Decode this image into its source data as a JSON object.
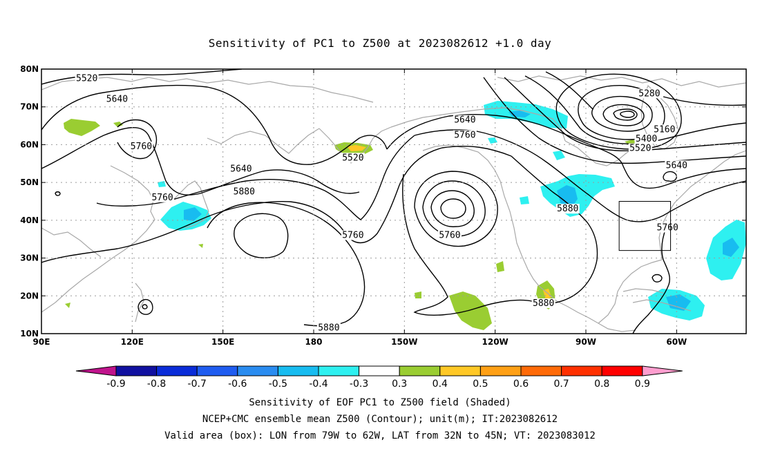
{
  "title": "Sensitivity of PC1 to Z500 at 2023082612 +1.0 day",
  "axes": {
    "lon_ticks": [
      {
        "lon": 90,
        "label": "90E"
      },
      {
        "lon": 120,
        "label": "120E"
      },
      {
        "lon": 150,
        "label": "150E"
      },
      {
        "lon": 180,
        "label": "180"
      },
      {
        "lon": 210,
        "label": "150W"
      },
      {
        "lon": 240,
        "label": "120W"
      },
      {
        "lon": 270,
        "label": "90W"
      },
      {
        "lon": 300,
        "label": "60W"
      }
    ],
    "lat_ticks": [
      {
        "lat": 80,
        "label": "80N"
      },
      {
        "lat": 70,
        "label": "70N"
      },
      {
        "lat": 60,
        "label": "60N"
      },
      {
        "lat": 50,
        "label": "50N"
      },
      {
        "lat": 40,
        "label": "40N"
      },
      {
        "lat": 30,
        "label": "30N"
      },
      {
        "lat": 20,
        "label": "20N"
      },
      {
        "lat": 10,
        "label": "10N"
      }
    ],
    "lon_range": [
      90,
      323
    ],
    "lat_range": [
      10,
      80
    ]
  },
  "contour_labels": [
    {
      "text": "5520",
      "lon": 105,
      "lat": 77
    },
    {
      "text": "5640",
      "lon": 115,
      "lat": 71.5
    },
    {
      "text": "5760",
      "lon": 123,
      "lat": 59
    },
    {
      "text": "5640",
      "lon": 156,
      "lat": 53
    },
    {
      "text": "5760",
      "lon": 130,
      "lat": 45.5
    },
    {
      "text": "5880",
      "lon": 157,
      "lat": 47
    },
    {
      "text": "5520",
      "lon": 193,
      "lat": 56
    },
    {
      "text": "5760",
      "lon": 193,
      "lat": 35.5
    },
    {
      "text": "5640",
      "lon": 230,
      "lat": 66
    },
    {
      "text": "5760",
      "lon": 230,
      "lat": 62
    },
    {
      "text": "5760",
      "lon": 225,
      "lat": 35.5
    },
    {
      "text": "5880",
      "lon": 264,
      "lat": 42.5
    },
    {
      "text": "5880",
      "lon": 256,
      "lat": 17.5
    },
    {
      "text": "5880",
      "lon": 185,
      "lat": 11
    },
    {
      "text": "5280",
      "lon": 291,
      "lat": 73
    },
    {
      "text": "5160",
      "lon": 296,
      "lat": 63.5
    },
    {
      "text": "5400",
      "lon": 290,
      "lat": 61
    },
    {
      "text": "5520",
      "lon": 288,
      "lat": 58.5
    },
    {
      "text": "5640",
      "lon": 300,
      "lat": 54
    },
    {
      "text": "5760",
      "lon": 297,
      "lat": 37.5
    }
  ],
  "valid_box": {
    "lon_min": 281,
    "lon_max": 298,
    "lat_min": 32,
    "lat_max": 45
  },
  "colorbar": {
    "colors": [
      "#1010a0",
      "#0a2cd8",
      "#1f5cf0",
      "#2a8cf0",
      "#18bcf0",
      "#2ef0f0",
      "#ffffff",
      "#9acd32",
      "#ffc826",
      "#ffa015",
      "#ff6a08",
      "#ff3000",
      "#ff0000"
    ],
    "left_tip_color": "#c0148c",
    "right_tip_color": "#ff9ecf",
    "labels": [
      "-0.9",
      "-0.8",
      "-0.7",
      "-0.6",
      "-0.5",
      "-0.4",
      "-0.3",
      "0.3",
      "0.4",
      "0.5",
      "0.6",
      "0.7",
      "0.8",
      "0.9"
    ]
  },
  "footer": {
    "line1": "Sensitivity of EOF PC1 to Z500 field (Shaded)",
    "line2": "NCEP+CMC ensemble mean Z500 (Contour); unit(m); IT:2023082612",
    "line3": "Valid area (box): LON from 79W to 62W, LAT from 32N to 45N; VT: 2023083012"
  },
  "colors": {
    "contour": "#000000",
    "coastline": "#a8a8a8",
    "grid": "#9a9a9a",
    "negative_shade": "#2ef0f0",
    "positive_shade": "#9acd32",
    "positive_shade_strong": "#ffc826"
  }
}
